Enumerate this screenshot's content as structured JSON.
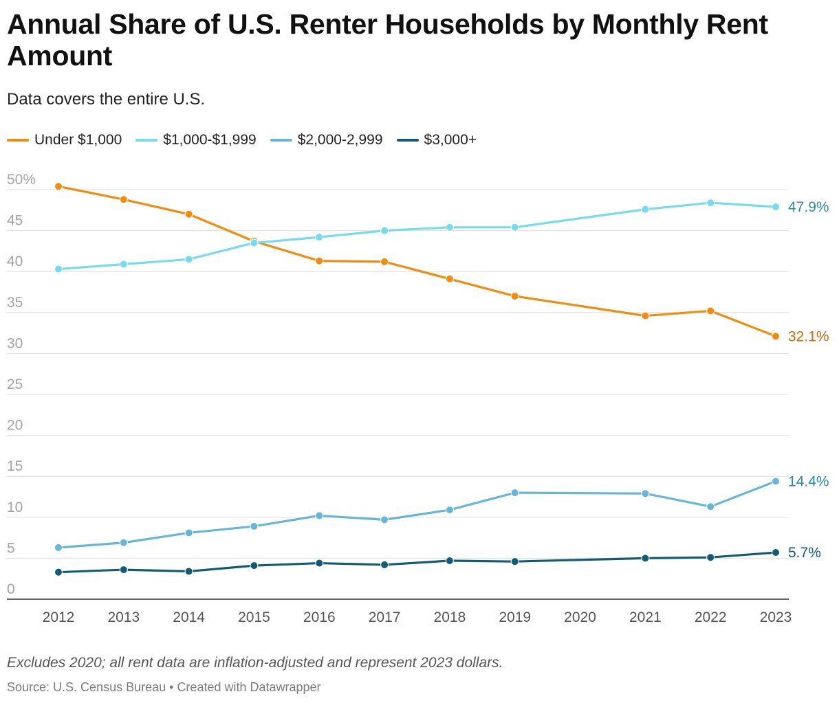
{
  "header": {
    "title": "Annual Share of U.S. Renter Households by Monthly Rent Amount",
    "subtitle": "Data covers the entire U.S."
  },
  "footer": {
    "note": "Excludes 2020; all rent data are inflation-adjusted and represent 2023 dollars.",
    "source": "Source: U.S. Census Bureau",
    "separator": "•",
    "credit": "Created with Datawrapper"
  },
  "chart_data": {
    "type": "line",
    "title": "Annual Share of U.S. Renter Households by Monthly Rent Amount",
    "subtitle": "Data covers the entire U.S.",
    "xlabel": "",
    "ylabel": "",
    "x": [
      2012,
      2013,
      2014,
      2015,
      2016,
      2017,
      2018,
      2019,
      2020,
      2021,
      2022,
      2023
    ],
    "ylim": [
      0,
      50
    ],
    "yticks": [
      0,
      5,
      10,
      15,
      20,
      25,
      30,
      35,
      40,
      45,
      50
    ],
    "ytick_labels": [
      "0",
      "5",
      "10",
      "15",
      "20",
      "25",
      "30",
      "35",
      "40",
      "45",
      "50%"
    ],
    "grid": true,
    "legend_position": "top-left",
    "series": [
      {
        "name": "Under $1,000",
        "color": "#f28c0f",
        "label_color": "#c96a0b",
        "end_label": "32.1%",
        "values": [
          50.4,
          48.8,
          47.0,
          43.7,
          41.3,
          41.2,
          39.1,
          37.0,
          null,
          34.6,
          35.2,
          32.1
        ]
      },
      {
        "name": "$1,000-$1,999",
        "color": "#77dbef",
        "label_color": "#2b8aa2",
        "end_label": "47.9%",
        "values": [
          40.3,
          40.9,
          41.5,
          43.5,
          44.2,
          45.0,
          45.4,
          45.4,
          null,
          47.6,
          48.4,
          47.9
        ]
      },
      {
        "name": "$2,000-2,999",
        "color": "#68b5da",
        "label_color": "#2a86b3",
        "end_label": "14.4%",
        "values": [
          6.3,
          6.9,
          8.1,
          8.9,
          10.2,
          9.7,
          10.9,
          13.0,
          null,
          12.9,
          11.3,
          14.4
        ]
      },
      {
        "name": "$3,000+",
        "color": "#125b75",
        "label_color": "#125b75",
        "end_label": "5.7%",
        "values": [
          3.3,
          3.6,
          3.4,
          4.1,
          4.4,
          4.2,
          4.7,
          4.6,
          null,
          5.0,
          5.1,
          5.7
        ]
      }
    ]
  }
}
